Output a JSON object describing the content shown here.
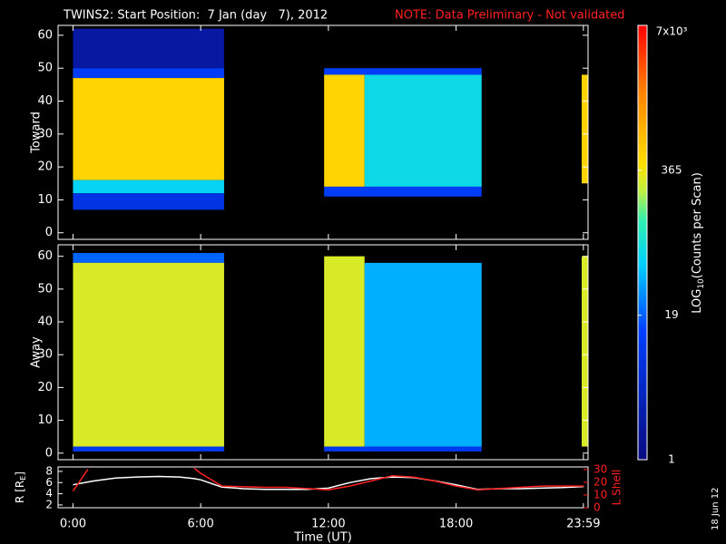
{
  "header": {
    "title": "TWINS2: Start Position:  7 Jan (day   7), 2012",
    "note": "NOTE: Data Preliminary - Not validated",
    "date": "18 Jun 12"
  },
  "colorbar": {
    "label": [
      "LOG",
      "10",
      "(Counts per Scan)"
    ],
    "clim": [
      1,
      7000
    ],
    "log": true,
    "ticks": [
      1,
      19,
      365,
      {
        "value": 7000,
        "label": "7x10³"
      }
    ],
    "colorscale": [
      [
        0,
        "#0a0a80"
      ],
      [
        0.3,
        "#0040ff"
      ],
      [
        0.45,
        "#00d0ff"
      ],
      [
        0.55,
        "#30f0b0"
      ],
      [
        0.62,
        "#c0f040"
      ],
      [
        0.68,
        "#ffe000"
      ],
      [
        0.85,
        "#ff8000"
      ],
      [
        1,
        "#ff0000"
      ]
    ]
  },
  "chart_data": [
    {
      "type": "heatmap",
      "ylabel": "Toward",
      "xlim": [
        -0.7,
        24.2
      ],
      "ylim": [
        -2,
        63
      ],
      "yticks": [
        0,
        10,
        20,
        30,
        40,
        50,
        60
      ],
      "cells": [
        {
          "x": [
            0,
            7.1
          ],
          "y": [
            50,
            62
          ],
          "value": 2
        },
        {
          "x": [
            0,
            7.1
          ],
          "y": [
            47,
            50
          ],
          "value": 12
        },
        {
          "x": [
            0,
            7.1
          ],
          "y": [
            16,
            47
          ],
          "value": 500
        },
        {
          "x": [
            0,
            7.1
          ],
          "y": [
            12,
            16
          ],
          "value": 60
        },
        {
          "x": [
            0,
            7.1
          ],
          "y": [
            7,
            12
          ],
          "value": 8
        },
        {
          "x": [
            11.8,
            19.2
          ],
          "y": [
            48,
            50
          ],
          "value": 12
        },
        {
          "x": [
            11.8,
            13.7
          ],
          "y": [
            14,
            48
          ],
          "value": 500
        },
        {
          "x": [
            13.7,
            19.2
          ],
          "y": [
            14,
            48
          ],
          "value": 70
        },
        {
          "x": [
            11.8,
            19.2
          ],
          "y": [
            11,
            14
          ],
          "value": 12
        },
        {
          "x": [
            23.9,
            24.2
          ],
          "y": [
            15,
            48
          ],
          "value": 500
        }
      ]
    },
    {
      "type": "heatmap",
      "ylabel": "Away",
      "xlim": [
        -0.7,
        24.2
      ],
      "ylim": [
        -2,
        63.5
      ],
      "yticks": [
        0,
        10,
        20,
        30,
        40,
        50,
        60
      ],
      "cells": [
        {
          "x": [
            0,
            7.1
          ],
          "y": [
            58,
            61
          ],
          "value": 20
        },
        {
          "x": [
            0,
            7.1
          ],
          "y": [
            2,
            58
          ],
          "value": 300
        },
        {
          "x": [
            0,
            7.1
          ],
          "y": [
            0.5,
            2
          ],
          "value": 10
        },
        {
          "x": [
            11.8,
            13.7
          ],
          "y": [
            2,
            60
          ],
          "value": 300
        },
        {
          "x": [
            13.7,
            19.2
          ],
          "y": [
            2,
            58
          ],
          "value": 40
        },
        {
          "x": [
            11.8,
            19.2
          ],
          "y": [
            0.5,
            2
          ],
          "value": 10
        },
        {
          "x": [
            23.9,
            24.2
          ],
          "y": [
            2,
            60
          ],
          "value": 300
        }
      ]
    },
    {
      "type": "line",
      "xlabel": "Time (UT)",
      "ylabel": [
        "R [R",
        "E",
        "]"
      ],
      "y2label": "L Shell",
      "xlim": [
        -0.7,
        24.2
      ],
      "ylim": [
        1.5,
        8.8
      ],
      "yticks": [
        2,
        4,
        6,
        8
      ],
      "y2lim": [
        0,
        32
      ],
      "y2ticks": [
        0,
        10,
        20,
        30
      ],
      "xticks": [
        {
          "value": 0,
          "label": "0:00"
        },
        {
          "value": 6,
          "label": "6:00"
        },
        {
          "value": 12,
          "label": "12:00"
        },
        {
          "value": 18,
          "label": "18:00"
        },
        {
          "value": 23.98,
          "label": "23:59"
        }
      ],
      "x": [
        0,
        0.7,
        1,
        2,
        3,
        4,
        5,
        5.7,
        6,
        7,
        8,
        9,
        10,
        11,
        12,
        13,
        14,
        15,
        16,
        17,
        18,
        19,
        20,
        21,
        22,
        23,
        24
      ],
      "series": [
        {
          "name": "R",
          "color": "#ffffff",
          "values": [
            5.6,
            6.1,
            6.3,
            6.8,
            7.0,
            7.1,
            7.0,
            6.7,
            6.5,
            5.2,
            4.9,
            4.8,
            4.8,
            4.8,
            5.0,
            6.0,
            6.7,
            7.0,
            6.9,
            6.3,
            5.6,
            4.8,
            4.9,
            4.9,
            5.0,
            5.1,
            5.3
          ]
        },
        {
          "name": "L Shell",
          "color": "#ff2020",
          "axis": "y2",
          "values": [
            13,
            30,
            null,
            null,
            null,
            null,
            null,
            31,
            27,
            17,
            16.5,
            16,
            16,
            15,
            14,
            17,
            21,
            25,
            24,
            21,
            17,
            14,
            15,
            16,
            17,
            17,
            17
          ]
        }
      ]
    }
  ]
}
